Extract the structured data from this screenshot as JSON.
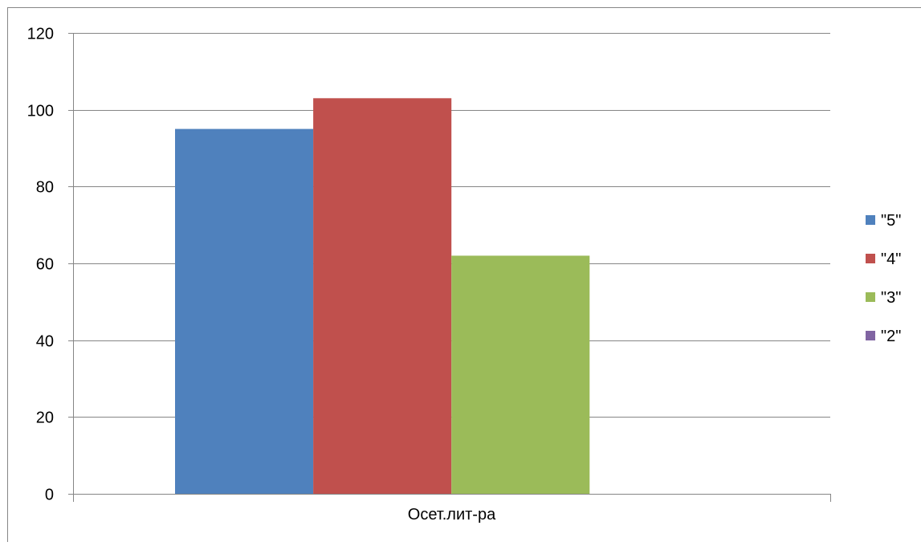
{
  "chart_data": {
    "type": "bar",
    "title": "",
    "xlabel": "",
    "ylabel": "",
    "categories": [
      "Осет.лит-ра"
    ],
    "series": [
      {
        "name": "\"5\"",
        "values": [
          95
        ],
        "color": "#4F81BD"
      },
      {
        "name": "\"4\"",
        "values": [
          103
        ],
        "color": "#C0504D"
      },
      {
        "name": "\"3\"",
        "values": [
          62
        ],
        "color": "#9BBB59"
      },
      {
        "name": "\"2\"",
        "values": [
          0
        ],
        "color": "#8064A2"
      }
    ],
    "ylim": [
      0,
      120
    ],
    "yticks": [
      0,
      20,
      40,
      60,
      80,
      100,
      120
    ],
    "grid": true,
    "legend_position": "right"
  }
}
